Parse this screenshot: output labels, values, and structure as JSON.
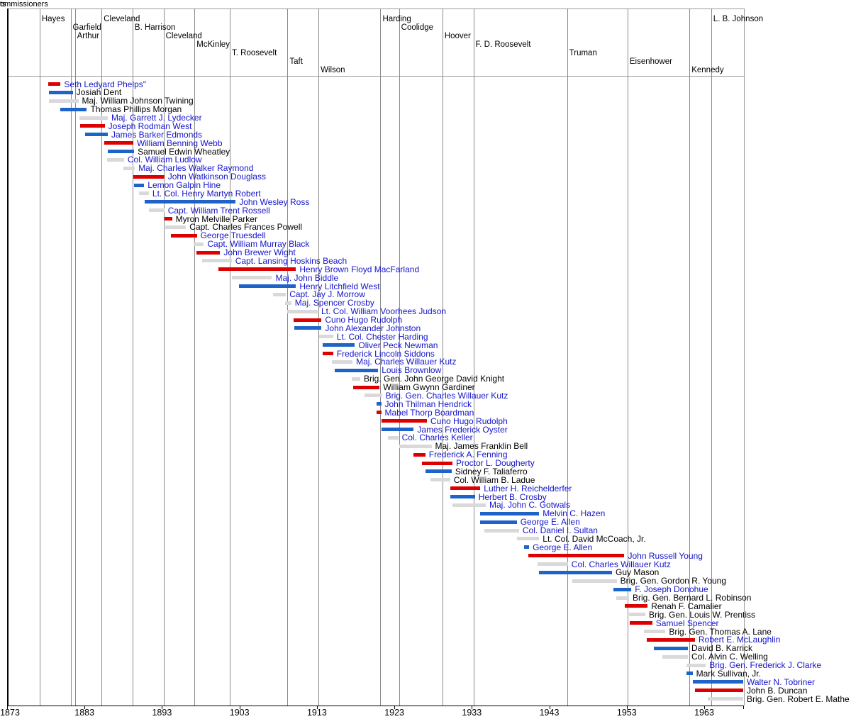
{
  "labels": {
    "presidents_axis_clipped": "ts",
    "commissioners_axis_clipped": "ommissioners"
  },
  "colors": {
    "bar_red": "#dd0000",
    "bar_blue": "#1e64c8",
    "bar_gray": "#d9d9d9",
    "link_text": "#1414cc",
    "plain_text": "#000000",
    "gridline": "#8a8a8a",
    "frame_line": "#9b9b9b",
    "axis_line": "#000000",
    "background": "#ffffff"
  },
  "chart_data": {
    "type": "timeline",
    "title": "",
    "x_axis": {
      "tick_years": [
        1873,
        1883,
        1893,
        1903,
        1913,
        1923,
        1933,
        1943,
        1953,
        1963
      ],
      "range": [
        1873,
        1968.2
      ],
      "grid": "vertical lines at presidential transitions"
    },
    "presidents": [
      {
        "name": "Hayes",
        "start": 1877.2,
        "label_row": 0
      },
      {
        "name": "Garfield",
        "start": 1881.2,
        "label_row": 1
      },
      {
        "name": "Arthur",
        "start": 1881.75,
        "label_row": 2
      },
      {
        "name": "Cleveland",
        "start": 1885.2,
        "label_row": 0
      },
      {
        "name": "B. Harrison",
        "start": 1889.2,
        "label_row": 1
      },
      {
        "name": "Cleveland",
        "start": 1893.2,
        "label_row": 2
      },
      {
        "name": "McKinley",
        "start": 1897.2,
        "label_row": 3
      },
      {
        "name": "T. Roosevelt",
        "start": 1901.75,
        "label_row": 4
      },
      {
        "name": "Taft",
        "start": 1909.2,
        "label_row": 5
      },
      {
        "name": "Wilson",
        "start": 1913.2,
        "label_row": 6
      },
      {
        "name": "Harding",
        "start": 1921.2,
        "label_row": 0
      },
      {
        "name": "Coolidge",
        "start": 1923.6,
        "label_row": 1
      },
      {
        "name": "Hoover",
        "start": 1929.2,
        "label_row": 2
      },
      {
        "name": "F. D. Roosevelt",
        "start": 1933.2,
        "label_row": 3
      },
      {
        "name": "Truman",
        "start": 1945.3,
        "label_row": 4
      },
      {
        "name": "Eisenhower",
        "start": 1953.1,
        "label_row": 5
      },
      {
        "name": "Kennedy",
        "start": 1961.1,
        "label_row": 6
      },
      {
        "name": "L. B. Johnson",
        "start": 1963.9,
        "label_row": 0
      }
    ],
    "commissioners": [
      {
        "name": "Seth Ledyard Phelps\"",
        "bar": "red",
        "link": true,
        "start": 1878.3,
        "end": 1879.9
      },
      {
        "name": "Josiah Dent",
        "bar": "blue",
        "link": false,
        "start": 1878.4,
        "end": 1881.5
      },
      {
        "name": "Maj. William Johnson Twining",
        "bar": "gray",
        "link": false,
        "start": 1878.4,
        "end": 1882.2
      },
      {
        "name": "Thomas Phillips Morgan",
        "bar": "blue",
        "link": false,
        "start": 1879.9,
        "end": 1883.3
      },
      {
        "name": "Maj. Garrett J. Lydecker",
        "bar": "gray",
        "link": true,
        "start": 1882.3,
        "end": 1886.0
      },
      {
        "name": "Joseph Rodman West",
        "bar": "red",
        "link": true,
        "start": 1882.4,
        "end": 1885.6
      },
      {
        "name": "James Barker Edmonds",
        "bar": "blue",
        "link": true,
        "start": 1883.1,
        "end": 1886.0
      },
      {
        "name": "William Benning Webb",
        "bar": "red",
        "link": true,
        "start": 1885.5,
        "end": 1889.3
      },
      {
        "name": "Samuel Edwin Wheatley",
        "bar": "blue",
        "link": false,
        "start": 1886.0,
        "end": 1889.4
      },
      {
        "name": "Col. William Ludlow",
        "bar": "gray",
        "link": true,
        "start": 1885.9,
        "end": 1888.1
      },
      {
        "name": "Maj. Charles Walker Raymond",
        "bar": "gray",
        "link": true,
        "start": 1888.0,
        "end": 1889.5
      },
      {
        "name": "John Watkinson Douglass",
        "bar": "red",
        "link": true,
        "start": 1889.3,
        "end": 1893.3
      },
      {
        "name": "Lemon Galpin Hine",
        "bar": "blue",
        "link": true,
        "start": 1889.4,
        "end": 1890.7
      },
      {
        "name": "Lt. Col. Henry Martyn Robert",
        "bar": "gray",
        "link": true,
        "start": 1890.0,
        "end": 1891.3
      },
      {
        "name": "John Wesley Ross",
        "bar": "blue",
        "link": true,
        "start": 1890.8,
        "end": 1902.5
      },
      {
        "name": "Capt. William Trent Rossell",
        "bar": "gray",
        "link": true,
        "start": 1891.3,
        "end": 1893.3
      },
      {
        "name": "Myron Melville Parker",
        "bar": "red",
        "link": false,
        "start": 1893.3,
        "end": 1894.3
      },
      {
        "name": "Capt. Charles Frances Powell",
        "bar": "gray",
        "link": false,
        "start": 1893.4,
        "end": 1896.1
      },
      {
        "name": "George Truesdell",
        "bar": "red",
        "link": true,
        "start": 1894.1,
        "end": 1897.5
      },
      {
        "name": "Capt. William Murray Black",
        "bar": "gray",
        "link": true,
        "start": 1897.1,
        "end": 1898.4
      },
      {
        "name": "John Brewer Wight",
        "bar": "red",
        "link": true,
        "start": 1897.4,
        "end": 1900.5
      },
      {
        "name": "Capt. Lansing Hoskins Beach",
        "bar": "gray",
        "link": true,
        "start": 1898.2,
        "end": 1902.0
      },
      {
        "name": "Henry Brown Floyd MacFarland",
        "bar": "red",
        "link": true,
        "start": 1900.3,
        "end": 1910.3
      },
      {
        "name": "Maj. John Biddle",
        "bar": "gray",
        "link": true,
        "start": 1902.0,
        "end": 1907.2
      },
      {
        "name": "Henry Litchfield West",
        "bar": "blue",
        "link": true,
        "start": 1902.9,
        "end": 1910.3
      },
      {
        "name": "Capt. Jay J. Morrow",
        "bar": "gray",
        "link": true,
        "start": 1907.3,
        "end": 1909.0
      },
      {
        "name": "Maj. Spencer Crosby",
        "bar": "gray",
        "link": true,
        "start": 1908.9,
        "end": 1909.7
      },
      {
        "name": "Lt. Col. William Voorhees Judson",
        "bar": "gray",
        "link": true,
        "start": 1909.2,
        "end": 1913.1
      },
      {
        "name": "Cuno Hugo Rudolph",
        "bar": "red",
        "link": true,
        "start": 1910.0,
        "end": 1913.6
      },
      {
        "name": "John Alexander Johnston",
        "bar": "blue",
        "link": true,
        "start": 1910.1,
        "end": 1913.6
      },
      {
        "name": "Lt. Col. Chester Harding",
        "bar": "gray",
        "link": true,
        "start": 1913.3,
        "end": 1915.1
      },
      {
        "name": "Oliver Peck Newman",
        "bar": "blue",
        "link": true,
        "start": 1913.7,
        "end": 1917.9
      },
      {
        "name": "Frederick Lincoln Siddons",
        "bar": "red",
        "link": true,
        "start": 1913.7,
        "end": 1915.1
      },
      {
        "name": "Maj. Charles Willauer Kutz",
        "bar": "gray",
        "link": true,
        "start": 1914.9,
        "end": 1917.6
      },
      {
        "name": "Louis Brownlow",
        "bar": "blue",
        "link": true,
        "start": 1915.3,
        "end": 1920.9
      },
      {
        "name": "Brig. Gen. John George David Knight",
        "bar": "gray",
        "link": false,
        "start": 1917.5,
        "end": 1918.6
      },
      {
        "name": "William Gwynn Gardiner",
        "bar": "red",
        "link": false,
        "start": 1917.7,
        "end": 1921.1
      },
      {
        "name": "Brig. Gen. Charles Willauer Kutz",
        "bar": "gray",
        "link": true,
        "start": 1919.1,
        "end": 1921.4
      },
      {
        "name": "John Thilman Hendrick",
        "bar": "blue",
        "link": true,
        "start": 1920.7,
        "end": 1921.3
      },
      {
        "name": "Mabel Thorp Boardman",
        "bar": "red",
        "link": true,
        "start": 1920.7,
        "end": 1921.3
      },
      {
        "name": "Cuno Hugo Rudolph",
        "bar": "red",
        "link": true,
        "start": 1921.3,
        "end": 1927.2
      },
      {
        "name": "James Frederick Oyster",
        "bar": "blue",
        "link": true,
        "start": 1921.3,
        "end": 1925.5
      },
      {
        "name": "Col. Charles Keller",
        "bar": "gray",
        "link": true,
        "start": 1922.2,
        "end": 1923.5
      },
      {
        "name": "Maj. James Franklin Bell",
        "bar": "gray",
        "link": false,
        "start": 1923.6,
        "end": 1927.8
      },
      {
        "name": "Frederick A. Fenning",
        "bar": "red",
        "link": true,
        "start": 1925.5,
        "end": 1927.0
      },
      {
        "name": "Proctor L. Dougherty",
        "bar": "red",
        "link": true,
        "start": 1926.6,
        "end": 1930.5
      },
      {
        "name": "Sidney F. Taliaferro",
        "bar": "blue",
        "link": false,
        "start": 1927.0,
        "end": 1930.4
      },
      {
        "name": "Col. William B. Ladue",
        "bar": "gray",
        "link": false,
        "start": 1927.7,
        "end": 1930.2
      },
      {
        "name": "Luther H. Reichelderfer",
        "bar": "red",
        "link": true,
        "start": 1930.2,
        "end": 1934.1
      },
      {
        "name": "Herbert B. Crosby",
        "bar": "blue",
        "link": true,
        "start": 1930.2,
        "end": 1933.4
      },
      {
        "name": "Maj. John C. Gotwals",
        "bar": "gray",
        "link": true,
        "start": 1930.5,
        "end": 1934.8
      },
      {
        "name": "Melvin C. Hazen",
        "bar": "blue",
        "link": true,
        "start": 1934.1,
        "end": 1941.7
      },
      {
        "name": "George E. Allen",
        "bar": "blue",
        "link": true,
        "start": 1934.1,
        "end": 1938.8
      },
      {
        "name": "Col. Daniel I. Sultan",
        "bar": "gray",
        "link": true,
        "start": 1934.6,
        "end": 1939.1
      },
      {
        "name": "Lt. Col. David McCoach, Jr.",
        "bar": "gray",
        "link": false,
        "start": 1938.8,
        "end": 1941.7
      },
      {
        "name": "George E. Allen",
        "bar": "blue",
        "link": true,
        "start": 1939.7,
        "end": 1940.4
      },
      {
        "name": "John Russell Young",
        "bar": "red",
        "link": true,
        "start": 1940.3,
        "end": 1952.7
      },
      {
        "name": "Col. Charles Willauer Kutz",
        "bar": "gray",
        "link": true,
        "start": 1941.5,
        "end": 1945.4
      },
      {
        "name": "Guy Mason",
        "bar": "blue",
        "link": false,
        "start": 1941.7,
        "end": 1951.1
      },
      {
        "name": "Brig. Gen. Gordon R. Young",
        "bar": "gray",
        "link": false,
        "start": 1946.0,
        "end": 1951.7
      },
      {
        "name": "F. Joseph Donohue",
        "bar": "blue",
        "link": true,
        "start": 1951.3,
        "end": 1953.6
      },
      {
        "name": "Brig. Gen. Bernard L. Robinson",
        "bar": "gray",
        "link": false,
        "start": 1951.6,
        "end": 1953.3
      },
      {
        "name": "Renah F. Camalier",
        "bar": "red",
        "link": false,
        "start": 1952.7,
        "end": 1955.7
      },
      {
        "name": "Brig. Gen. Louis W. Prentiss",
        "bar": "gray",
        "link": false,
        "start": 1953.3,
        "end": 1955.4
      },
      {
        "name": "Samuel Spencer",
        "bar": "red",
        "link": true,
        "start": 1953.4,
        "end": 1956.3
      },
      {
        "name": "Brig. Gen. Thomas A. Lane",
        "bar": "gray",
        "link": false,
        "start": 1955.2,
        "end": 1958.0
      },
      {
        "name": "Robert E. McLaughlin",
        "bar": "red",
        "link": true,
        "start": 1955.6,
        "end": 1961.8
      },
      {
        "name": "David B. Karrick",
        "bar": "blue",
        "link": false,
        "start": 1956.5,
        "end": 1960.9
      },
      {
        "name": "Col. Alvin C. Welling",
        "bar": "gray",
        "link": false,
        "start": 1957.6,
        "end": 1960.9
      },
      {
        "name": "Brig. Gen. Frederick J. Clarke",
        "bar": "gray",
        "link": true,
        "start": 1960.7,
        "end": 1963.2
      },
      {
        "name": "Mark Sullivan, Jr.",
        "bar": "blue",
        "link": false,
        "start": 1960.7,
        "end": 1961.5
      },
      {
        "name": "Walter N. Tobriner",
        "bar": "blue",
        "link": true,
        "start": 1961.5,
        "end": 1968.1
      },
      {
        "name": "John B. Duncan",
        "bar": "red",
        "link": false,
        "start": 1961.8,
        "end": 1968.1
      },
      {
        "name": "Brig. Gen. Robert E. Mathe",
        "bar": "gray",
        "link": false,
        "start": 1963.5,
        "end": 1968.1
      }
    ]
  }
}
